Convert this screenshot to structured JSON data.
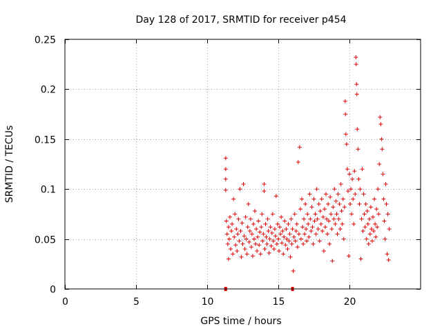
{
  "chart_data": {
    "type": "scatter",
    "title": "Day 128 of 2017, SRMTID for receiver p454",
    "xlabel": "GPS time / hours",
    "ylabel": "SRMTID / TECUs",
    "xlim": [
      0,
      25
    ],
    "ylim": [
      0,
      0.25
    ],
    "xticks": [
      0,
      5,
      10,
      15,
      20
    ],
    "yticks": [
      0,
      0.05,
      0.1,
      0.15,
      0.2,
      0.25
    ],
    "xtick_labels": [
      "0",
      "5",
      "10",
      "15",
      "20"
    ],
    "ytick_labels": [
      "0",
      "0.05",
      "0.1",
      "0.15",
      "0.2",
      "0.25"
    ],
    "grid": true,
    "marker_color": "#e00000",
    "gap_markers_x": [
      11.3,
      16.0
    ],
    "series": [
      {
        "name": "SRMTID",
        "marker": "+",
        "points": [
          [
            11.3,
            0.131
          ],
          [
            11.3,
            0.12
          ],
          [
            11.3,
            0.11
          ],
          [
            11.3,
            0.099
          ],
          [
            11.35,
            0.068
          ],
          [
            11.4,
            0.055
          ],
          [
            11.45,
            0.045
          ],
          [
            11.5,
            0.062
          ],
          [
            11.5,
            0.03
          ],
          [
            11.55,
            0.05
          ],
          [
            11.6,
            0.072
          ],
          [
            11.65,
            0.04
          ],
          [
            11.7,
            0.058
          ],
          [
            11.75,
            0.065
          ],
          [
            11.8,
            0.035
          ],
          [
            11.85,
            0.09
          ],
          [
            11.9,
            0.052
          ],
          [
            11.95,
            0.075
          ],
          [
            12.0,
            0.044
          ],
          [
            12.05,
            0.06
          ],
          [
            12.1,
            0.038
          ],
          [
            12.15,
            0.055
          ],
          [
            12.2,
            0.07
          ],
          [
            12.25,
            0.048
          ],
          [
            12.3,
            0.1
          ],
          [
            12.35,
            0.058
          ],
          [
            12.4,
            0.032
          ],
          [
            12.45,
            0.066
          ],
          [
            12.5,
            0.045
          ],
          [
            12.55,
            0.105
          ],
          [
            12.6,
            0.053
          ],
          [
            12.65,
            0.04
          ],
          [
            12.7,
            0.072
          ],
          [
            12.75,
            0.05
          ],
          [
            12.8,
            0.035
          ],
          [
            12.85,
            0.062
          ],
          [
            12.9,
            0.085
          ],
          [
            12.95,
            0.047
          ],
          [
            13.0,
            0.058
          ],
          [
            13.05,
            0.07
          ],
          [
            13.1,
            0.042
          ],
          [
            13.15,
            0.055
          ],
          [
            13.2,
            0.033
          ],
          [
            13.25,
            0.065
          ],
          [
            13.3,
            0.05
          ],
          [
            13.35,
            0.078
          ],
          [
            13.4,
            0.045
          ],
          [
            13.45,
            0.06
          ],
          [
            13.5,
            0.038
          ],
          [
            13.55,
            0.052
          ],
          [
            13.6,
            0.068
          ],
          [
            13.65,
            0.044
          ],
          [
            13.7,
            0.057
          ],
          [
            13.75,
            0.035
          ],
          [
            13.8,
            0.062
          ],
          [
            13.85,
            0.075
          ],
          [
            13.9,
            0.048
          ],
          [
            13.95,
            0.055
          ],
          [
            14.0,
            0.105
          ],
          [
            14.0,
            0.098
          ],
          [
            14.05,
            0.04
          ],
          [
            14.1,
            0.065
          ],
          [
            14.15,
            0.052
          ],
          [
            14.2,
            0.045
          ],
          [
            14.25,
            0.07
          ],
          [
            14.3,
            0.058
          ],
          [
            14.35,
            0.036
          ],
          [
            14.4,
            0.05
          ],
          [
            14.45,
            0.062
          ],
          [
            14.5,
            0.043
          ],
          [
            14.55,
            0.056
          ],
          [
            14.6,
            0.075
          ],
          [
            14.65,
            0.048
          ],
          [
            14.7,
            0.04
          ],
          [
            14.75,
            0.06
          ],
          [
            14.8,
            0.053
          ],
          [
            14.85,
            0.093
          ],
          [
            14.9,
            0.045
          ],
          [
            14.95,
            0.065
          ],
          [
            15.0,
            0.05
          ],
          [
            15.05,
            0.038
          ],
          [
            15.1,
            0.062
          ],
          [
            15.15,
            0.055
          ],
          [
            15.2,
            0.072
          ],
          [
            15.25,
            0.046
          ],
          [
            15.3,
            0.058
          ],
          [
            15.35,
            0.035
          ],
          [
            15.4,
            0.052
          ],
          [
            15.45,
            0.068
          ],
          [
            15.5,
            0.044
          ],
          [
            15.55,
            0.06
          ],
          [
            15.6,
            0.05
          ],
          [
            15.65,
            0.04
          ],
          [
            15.7,
            0.065
          ],
          [
            15.75,
            0.048
          ],
          [
            15.8,
            0.055
          ],
          [
            15.85,
            0.032
          ],
          [
            15.9,
            0.07
          ],
          [
            15.95,
            0.045
          ],
          [
            16.0,
            0.06
          ],
          [
            16.05,
            0.018
          ],
          [
            16.1,
            0.052
          ],
          [
            16.15,
            0.075
          ],
          [
            16.2,
            0.048
          ],
          [
            16.25,
            0.058
          ],
          [
            16.3,
            0.065
          ],
          [
            16.35,
            0.042
          ],
          [
            16.4,
            0.127
          ],
          [
            16.45,
            0.055
          ],
          [
            16.5,
            0.142
          ],
          [
            16.55,
            0.08
          ],
          [
            16.6,
            0.05
          ],
          [
            16.65,
            0.09
          ],
          [
            16.7,
            0.062
          ],
          [
            16.75,
            0.045
          ],
          [
            16.8,
            0.07
          ],
          [
            16.85,
            0.055
          ],
          [
            16.9,
            0.085
          ],
          [
            16.95,
            0.06
          ],
          [
            17.0,
            0.048
          ],
          [
            17.05,
            0.075
          ],
          [
            17.1,
            0.065
          ],
          [
            17.15,
            0.052
          ],
          [
            17.2,
            0.095
          ],
          [
            17.25,
            0.07
          ],
          [
            17.3,
            0.058
          ],
          [
            17.35,
            0.082
          ],
          [
            17.4,
            0.062
          ],
          [
            17.45,
            0.045
          ],
          [
            17.5,
            0.09
          ],
          [
            17.55,
            0.068
          ],
          [
            17.6,
            0.075
          ],
          [
            17.65,
            0.055
          ],
          [
            17.7,
            0.1
          ],
          [
            17.75,
            0.07
          ],
          [
            17.8,
            0.06
          ],
          [
            17.85,
            0.085
          ],
          [
            17.9,
            0.048
          ],
          [
            17.95,
            0.078
          ],
          [
            18.0,
            0.065
          ],
          [
            18.05,
            0.09
          ],
          [
            18.1,
            0.058
          ],
          [
            18.15,
            0.072
          ],
          [
            18.2,
            0.038
          ],
          [
            18.25,
            0.08
          ],
          [
            18.3,
            0.062
          ],
          [
            18.35,
            0.095
          ],
          [
            18.4,
            0.07
          ],
          [
            18.45,
            0.055
          ],
          [
            18.5,
            0.085
          ],
          [
            18.55,
            0.068
          ],
          [
            18.6,
            0.045
          ],
          [
            18.65,
            0.092
          ],
          [
            18.7,
            0.075
          ],
          [
            18.75,
            0.06
          ],
          [
            18.8,
            0.028
          ],
          [
            18.85,
            0.082
          ],
          [
            18.9,
            0.07
          ],
          [
            18.95,
            0.1
          ],
          [
            19.0,
            0.065
          ],
          [
            19.05,
            0.088
          ],
          [
            19.1,
            0.075
          ],
          [
            19.15,
            0.055
          ],
          [
            19.2,
            0.095
          ],
          [
            19.25,
            0.07
          ],
          [
            19.3,
            0.085
          ],
          [
            19.35,
            0.06
          ],
          [
            19.4,
            0.105
          ],
          [
            19.45,
            0.078
          ],
          [
            19.5,
            0.065
          ],
          [
            19.55,
            0.09
          ],
          [
            19.6,
            0.05
          ],
          [
            19.65,
            0.082
          ],
          [
            19.7,
            0.188
          ],
          [
            19.72,
            0.175
          ],
          [
            19.75,
            0.155
          ],
          [
            19.8,
            0.145
          ],
          [
            19.85,
            0.12
          ],
          [
            19.9,
            0.098
          ],
          [
            19.95,
            0.033
          ],
          [
            20.0,
            0.115
          ],
          [
            20.05,
            0.085
          ],
          [
            20.1,
            0.1
          ],
          [
            20.15,
            0.075
          ],
          [
            20.2,
            0.11
          ],
          [
            20.25,
            0.09
          ],
          [
            20.3,
            0.065
          ],
          [
            20.35,
            0.118
          ],
          [
            20.4,
            0.095
          ],
          [
            20.45,
            0.232
          ],
          [
            20.47,
            0.225
          ],
          [
            20.5,
            0.205
          ],
          [
            20.52,
            0.195
          ],
          [
            20.55,
            0.16
          ],
          [
            20.6,
            0.14
          ],
          [
            20.65,
            0.11
          ],
          [
            20.7,
            0.085
          ],
          [
            20.75,
            0.1
          ],
          [
            20.8,
            0.03
          ],
          [
            20.85,
            0.07
          ],
          [
            20.9,
            0.12
          ],
          [
            20.95,
            0.058
          ],
          [
            21.0,
            0.095
          ],
          [
            21.05,
            0.075
          ],
          [
            21.1,
            0.062
          ],
          [
            21.15,
            0.085
          ],
          [
            21.2,
            0.05
          ],
          [
            21.25,
            0.078
          ],
          [
            21.3,
            0.065
          ],
          [
            21.35,
            0.045
          ],
          [
            21.4,
            0.07
          ],
          [
            21.45,
            0.055
          ],
          [
            21.5,
            0.082
          ],
          [
            21.55,
            0.06
          ],
          [
            21.6,
            0.048
          ],
          [
            21.65,
            0.072
          ],
          [
            21.7,
            0.058
          ],
          [
            21.75,
            0.09
          ],
          [
            21.8,
            0.065
          ],
          [
            21.85,
            0.052
          ],
          [
            21.9,
            0.08
          ],
          [
            21.95,
            0.062
          ],
          [
            22.0,
            0.1
          ],
          [
            22.05,
            0.075
          ],
          [
            22.1,
            0.125
          ],
          [
            22.15,
            0.172
          ],
          [
            22.2,
            0.165
          ],
          [
            22.25,
            0.15
          ],
          [
            22.3,
            0.14
          ],
          [
            22.35,
            0.115
          ],
          [
            22.4,
            0.09
          ],
          [
            22.45,
            0.068
          ],
          [
            22.5,
            0.05
          ],
          [
            22.55,
            0.105
          ],
          [
            22.6,
            0.085
          ],
          [
            22.65,
            0.035
          ],
          [
            22.7,
            0.075
          ],
          [
            22.75,
            0.029
          ],
          [
            22.8,
            0.06
          ]
        ]
      }
    ]
  }
}
